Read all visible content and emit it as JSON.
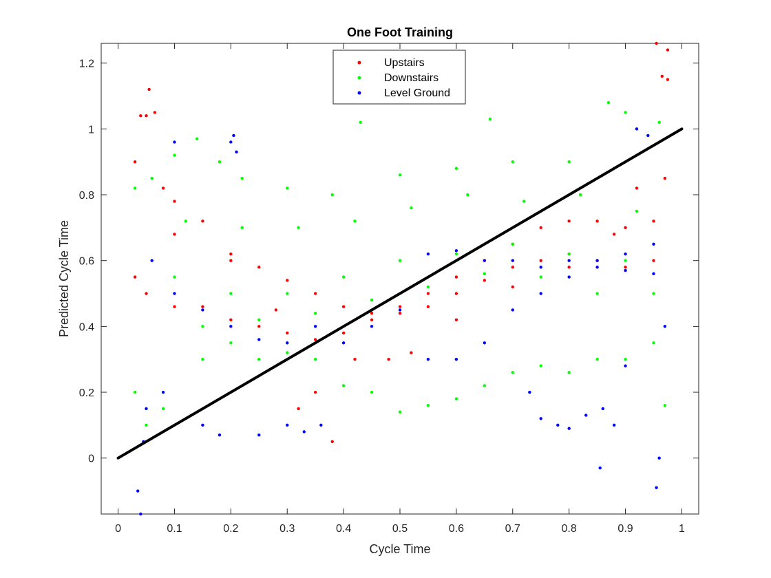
{
  "chart_data": {
    "type": "scatter",
    "title": "One Foot Training",
    "xlabel": "Cycle Time",
    "ylabel": "Predicted Cycle Time",
    "xlim": [
      -0.03,
      1.03
    ],
    "ylim": [
      -0.17,
      1.26
    ],
    "xticks": [
      0,
      0.1,
      0.2,
      0.3,
      0.4,
      0.5,
      0.6,
      0.7,
      0.8,
      0.9,
      1
    ],
    "xtick_labels": [
      "0",
      "0.1",
      "0.2",
      "0.3",
      "0.4",
      "0.5",
      "0.6",
      "0.7",
      "0.8",
      "0.9",
      "1"
    ],
    "yticks": [
      0,
      0.2,
      0.4,
      0.6,
      0.8,
      1,
      1.2
    ],
    "ytick_labels": [
      "0",
      "0.2",
      "0.4",
      "0.6",
      "0.8",
      "1",
      "1.2"
    ],
    "grid": false,
    "legend_position": "top-center",
    "reference_line": {
      "x": [
        0,
        1
      ],
      "y": [
        0,
        1
      ],
      "color": "#000000"
    },
    "series": [
      {
        "name": "Upstairs",
        "color": "#ff0000",
        "points": [
          [
            0.03,
            0.9
          ],
          [
            0.04,
            1.04
          ],
          [
            0.05,
            1.04
          ],
          [
            0.055,
            1.12
          ],
          [
            0.065,
            1.05
          ],
          [
            0.08,
            0.82
          ],
          [
            0.1,
            0.78
          ],
          [
            0.15,
            0.72
          ],
          [
            0.2,
            0.62
          ],
          [
            0.25,
            0.58
          ],
          [
            0.3,
            0.54
          ],
          [
            0.35,
            0.5
          ],
          [
            0.4,
            0.46
          ],
          [
            0.45,
            0.44
          ],
          [
            0.5,
            0.46
          ],
          [
            0.55,
            0.5
          ],
          [
            0.6,
            0.55
          ],
          [
            0.65,
            0.6
          ],
          [
            0.7,
            0.65
          ],
          [
            0.75,
            0.7
          ],
          [
            0.8,
            0.72
          ],
          [
            0.85,
            0.72
          ],
          [
            0.9,
            0.7
          ],
          [
            0.95,
            0.72
          ],
          [
            0.97,
            0.85
          ],
          [
            0.955,
            1.26
          ],
          [
            0.965,
            1.16
          ],
          [
            0.975,
            1.24
          ],
          [
            0.975,
            1.15
          ],
          [
            0.03,
            0.55
          ],
          [
            0.05,
            0.5
          ],
          [
            0.1,
            0.46
          ],
          [
            0.15,
            0.46
          ],
          [
            0.2,
            0.42
          ],
          [
            0.25,
            0.4
          ],
          [
            0.3,
            0.38
          ],
          [
            0.35,
            0.36
          ],
          [
            0.4,
            0.38
          ],
          [
            0.45,
            0.42
          ],
          [
            0.5,
            0.44
          ],
          [
            0.55,
            0.46
          ],
          [
            0.6,
            0.5
          ],
          [
            0.65,
            0.54
          ],
          [
            0.7,
            0.58
          ],
          [
            0.75,
            0.6
          ],
          [
            0.8,
            0.62
          ],
          [
            0.85,
            0.6
          ],
          [
            0.9,
            0.58
          ],
          [
            0.95,
            0.6
          ],
          [
            0.1,
            0.68
          ],
          [
            0.2,
            0.6
          ],
          [
            0.28,
            0.45
          ],
          [
            0.32,
            0.15
          ],
          [
            0.35,
            0.2
          ],
          [
            0.38,
            0.05
          ],
          [
            0.42,
            0.3
          ],
          [
            0.48,
            0.3
          ],
          [
            0.52,
            0.32
          ],
          [
            0.6,
            0.42
          ],
          [
            0.7,
            0.52
          ],
          [
            0.8,
            0.58
          ],
          [
            0.88,
            0.68
          ],
          [
            0.92,
            0.82
          ]
        ]
      },
      {
        "name": "Downstairs",
        "color": "#00ff00",
        "points": [
          [
            0.03,
            0.82
          ],
          [
            0.06,
            0.85
          ],
          [
            0.1,
            0.92
          ],
          [
            0.14,
            0.97
          ],
          [
            0.18,
            0.9
          ],
          [
            0.22,
            0.85
          ],
          [
            0.3,
            0.82
          ],
          [
            0.38,
            0.8
          ],
          [
            0.43,
            1.02
          ],
          [
            0.5,
            0.86
          ],
          [
            0.6,
            0.88
          ],
          [
            0.66,
            1.03
          ],
          [
            0.7,
            0.9
          ],
          [
            0.8,
            0.9
          ],
          [
            0.87,
            1.08
          ],
          [
            0.9,
            1.05
          ],
          [
            0.96,
            1.02
          ],
          [
            0.03,
            0.2
          ],
          [
            0.05,
            0.1
          ],
          [
            0.08,
            0.15
          ],
          [
            0.15,
            0.3
          ],
          [
            0.2,
            0.35
          ],
          [
            0.25,
            0.3
          ],
          [
            0.3,
            0.32
          ],
          [
            0.35,
            0.3
          ],
          [
            0.4,
            0.22
          ],
          [
            0.45,
            0.2
          ],
          [
            0.5,
            0.14
          ],
          [
            0.55,
            0.16
          ],
          [
            0.6,
            0.18
          ],
          [
            0.65,
            0.22
          ],
          [
            0.7,
            0.26
          ],
          [
            0.75,
            0.28
          ],
          [
            0.8,
            0.26
          ],
          [
            0.85,
            0.3
          ],
          [
            0.9,
            0.3
          ],
          [
            0.95,
            0.35
          ],
          [
            0.97,
            0.16
          ],
          [
            0.1,
            0.55
          ],
          [
            0.2,
            0.5
          ],
          [
            0.3,
            0.5
          ],
          [
            0.4,
            0.55
          ],
          [
            0.5,
            0.6
          ],
          [
            0.6,
            0.62
          ],
          [
            0.7,
            0.65
          ],
          [
            0.8,
            0.62
          ],
          [
            0.9,
            0.6
          ],
          [
            0.15,
            0.4
          ],
          [
            0.25,
            0.42
          ],
          [
            0.35,
            0.44
          ],
          [
            0.45,
            0.48
          ],
          [
            0.55,
            0.52
          ],
          [
            0.65,
            0.56
          ],
          [
            0.75,
            0.55
          ],
          [
            0.85,
            0.5
          ],
          [
            0.95,
            0.5
          ],
          [
            0.12,
            0.72
          ],
          [
            0.22,
            0.7
          ],
          [
            0.32,
            0.7
          ],
          [
            0.42,
            0.72
          ],
          [
            0.52,
            0.76
          ],
          [
            0.62,
            0.8
          ],
          [
            0.72,
            0.78
          ],
          [
            0.82,
            0.8
          ],
          [
            0.92,
            0.75
          ]
        ]
      },
      {
        "name": "Level Ground",
        "color": "#0000ff",
        "points": [
          [
            0.035,
            -0.1
          ],
          [
            0.04,
            -0.17
          ],
          [
            0.045,
            0.05
          ],
          [
            0.05,
            0.15
          ],
          [
            0.08,
            0.2
          ],
          [
            0.1,
            0.96
          ],
          [
            0.15,
            0.1
          ],
          [
            0.18,
            0.07
          ],
          [
            0.2,
            0.96
          ],
          [
            0.205,
            0.98
          ],
          [
            0.21,
            0.93
          ],
          [
            0.25,
            0.07
          ],
          [
            0.3,
            0.1
          ],
          [
            0.33,
            0.08
          ],
          [
            0.36,
            0.1
          ],
          [
            0.4,
            0.35
          ],
          [
            0.45,
            0.4
          ],
          [
            0.5,
            0.45
          ],
          [
            0.55,
            0.3
          ],
          [
            0.6,
            0.3
          ],
          [
            0.65,
            0.35
          ],
          [
            0.7,
            0.45
          ],
          [
            0.75,
            0.5
          ],
          [
            0.8,
            0.55
          ],
          [
            0.85,
            0.6
          ],
          [
            0.9,
            0.62
          ],
          [
            0.95,
            0.65
          ],
          [
            0.73,
            0.2
          ],
          [
            0.75,
            0.12
          ],
          [
            0.78,
            0.1
          ],
          [
            0.8,
            0.09
          ],
          [
            0.83,
            0.13
          ],
          [
            0.86,
            0.15
          ],
          [
            0.88,
            0.1
          ],
          [
            0.9,
            0.28
          ],
          [
            0.855,
            -0.03
          ],
          [
            0.955,
            -0.09
          ],
          [
            0.96,
            0.0
          ],
          [
            0.97,
            0.4
          ],
          [
            0.92,
            1.0
          ],
          [
            0.94,
            0.98
          ],
          [
            0.06,
            0.6
          ],
          [
            0.1,
            0.5
          ],
          [
            0.15,
            0.45
          ],
          [
            0.2,
            0.4
          ],
          [
            0.25,
            0.36
          ],
          [
            0.3,
            0.35
          ],
          [
            0.35,
            0.4
          ],
          [
            0.55,
            0.62
          ],
          [
            0.6,
            0.63
          ],
          [
            0.65,
            0.6
          ],
          [
            0.7,
            0.6
          ],
          [
            0.75,
            0.58
          ],
          [
            0.8,
            0.6
          ],
          [
            0.85,
            0.58
          ],
          [
            0.9,
            0.57
          ],
          [
            0.95,
            0.56
          ]
        ]
      }
    ]
  }
}
